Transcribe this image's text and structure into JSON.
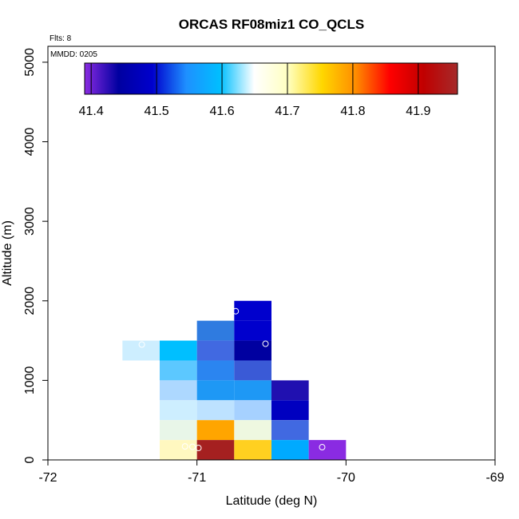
{
  "chart_data": {
    "type": "heatmap",
    "title": "ORCAS RF08miz1 CO_QCLS",
    "xlabel": "Latitude (deg N)",
    "ylabel": "Altitude (m)",
    "xlim": [
      -72,
      -69
    ],
    "ylim": [
      0,
      5200
    ],
    "x_ticks": [
      -72,
      -71,
      -70,
      -69
    ],
    "x_tick_labels": [
      "-72",
      "-71",
      "-70",
      "-69"
    ],
    "y_ticks": [
      0,
      1000,
      2000,
      3000,
      4000,
      5000
    ],
    "y_tick_labels": [
      "0",
      "1000",
      "2000",
      "3000",
      "4000",
      "5000"
    ],
    "annotations": {
      "flights": "Flts: 8",
      "date": "MMDD: 0205"
    },
    "colorbar": {
      "min": 41.39,
      "max": 41.96,
      "ticks": [
        41.4,
        41.5,
        41.6,
        41.7,
        41.8,
        41.9
      ],
      "tick_labels": [
        "41.4",
        "41.5",
        "41.6",
        "41.7",
        "41.8",
        "41.9"
      ],
      "colors": [
        "#8a2be2",
        "#0000a0",
        "#0000cd",
        "#1e90ff",
        "#00bfff",
        "#ffffff",
        "#ffffc0",
        "#ffd700",
        "#ff8c00",
        "#ff0000",
        "#c00000",
        "#a52a2a"
      ]
    },
    "cell_width_deg": 0.25,
    "cell_height_m": 250,
    "cells": [
      {
        "lat": -71.375,
        "alt": 1375,
        "value": 41.67,
        "color": "#cdeeff"
      },
      {
        "lat": -71.125,
        "alt": 1375,
        "value": 41.61,
        "color": "#00bfff"
      },
      {
        "lat": -71.125,
        "alt": 1125,
        "value": 41.62,
        "color": "#5cc8ff"
      },
      {
        "lat": -71.125,
        "alt": 875,
        "value": 41.64,
        "color": "#add8ff"
      },
      {
        "lat": -71.125,
        "alt": 625,
        "value": 41.67,
        "color": "#cdeeff"
      },
      {
        "lat": -71.125,
        "alt": 375,
        "value": 41.69,
        "color": "#e8f6e8"
      },
      {
        "lat": -71.125,
        "alt": 125,
        "value": 41.72,
        "color": "#fff8c0"
      },
      {
        "lat": -70.875,
        "alt": 1625,
        "value": 41.57,
        "color": "#2f7be0"
      },
      {
        "lat": -70.875,
        "alt": 1375,
        "value": 41.55,
        "color": "#4169e1"
      },
      {
        "lat": -70.875,
        "alt": 1125,
        "value": 41.58,
        "color": "#2b85f0"
      },
      {
        "lat": -70.875,
        "alt": 875,
        "value": 41.6,
        "color": "#1e98f5"
      },
      {
        "lat": -70.875,
        "alt": 625,
        "value": 41.65,
        "color": "#bde2ff"
      },
      {
        "lat": -70.875,
        "alt": 375,
        "value": 41.8,
        "color": "#ffa500"
      },
      {
        "lat": -70.875,
        "alt": 125,
        "value": 41.92,
        "color": "#a52020"
      },
      {
        "lat": -70.625,
        "alt": 1875,
        "value": 41.49,
        "color": "#0000cd"
      },
      {
        "lat": -70.625,
        "alt": 1625,
        "value": 41.49,
        "color": "#0000cd"
      },
      {
        "lat": -70.625,
        "alt": 1375,
        "value": 41.46,
        "color": "#0000a0"
      },
      {
        "lat": -70.625,
        "alt": 1125,
        "value": 41.55,
        "color": "#3a5ad6"
      },
      {
        "lat": -70.625,
        "alt": 875,
        "value": 41.6,
        "color": "#1e98f5"
      },
      {
        "lat": -70.625,
        "alt": 625,
        "value": 41.64,
        "color": "#a6d1ff"
      },
      {
        "lat": -70.625,
        "alt": 375,
        "value": 41.69,
        "color": "#eef8e0"
      },
      {
        "lat": -70.625,
        "alt": 125,
        "value": 41.75,
        "color": "#ffd020"
      },
      {
        "lat": -70.375,
        "alt": 875,
        "value": 41.45,
        "color": "#2010b0"
      },
      {
        "lat": -70.375,
        "alt": 625,
        "value": 41.48,
        "color": "#0000c0"
      },
      {
        "lat": -70.375,
        "alt": 375,
        "value": 41.55,
        "color": "#4169e1"
      },
      {
        "lat": -70.375,
        "alt": 125,
        "value": 41.6,
        "color": "#00aaff"
      },
      {
        "lat": -70.125,
        "alt": 125,
        "value": 41.41,
        "color": "#8a2be2"
      }
    ],
    "markers": [
      {
        "lat": -71.37,
        "alt": 1450
      },
      {
        "lat": -70.74,
        "alt": 1870
      },
      {
        "lat": -70.54,
        "alt": 1460
      },
      {
        "lat": -71.08,
        "alt": 170
      },
      {
        "lat": -71.03,
        "alt": 165
      },
      {
        "lat": -70.99,
        "alt": 150
      },
      {
        "lat": -70.16,
        "alt": 160
      }
    ]
  }
}
